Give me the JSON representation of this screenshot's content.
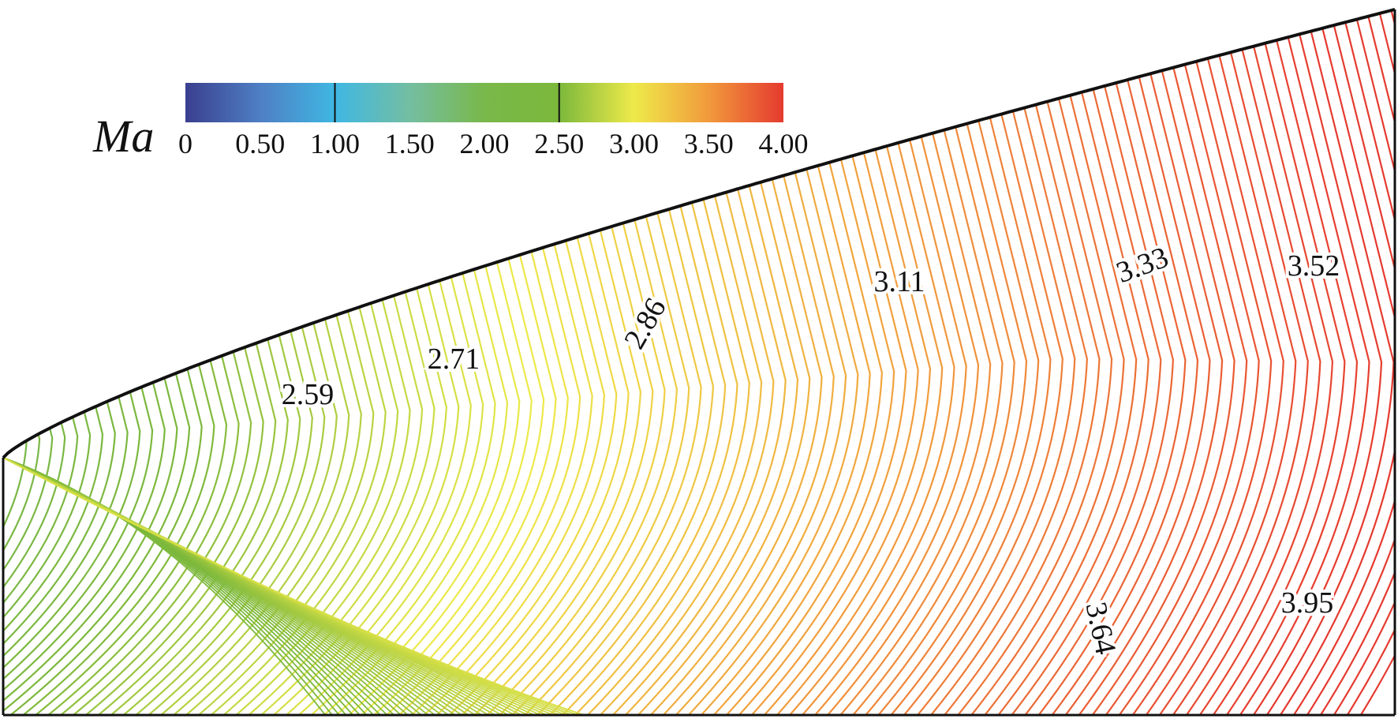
{
  "colorbar": {
    "variable": "Ma",
    "tick_labels": [
      "0",
      "0.50",
      "1.00",
      "1.50",
      "2.00",
      "2.50",
      "3.00",
      "3.50",
      "4.00"
    ],
    "range": [
      0,
      4.0
    ],
    "marker_values": [
      1.0,
      2.5
    ],
    "color_stops": [
      {
        "value": 0.0,
        "color": "#3a3f8f"
      },
      {
        "value": 0.5,
        "color": "#4f7fc4"
      },
      {
        "value": 1.0,
        "color": "#3fb7e3"
      },
      {
        "value": 1.5,
        "color": "#74bea2"
      },
      {
        "value": 2.0,
        "color": "#79b84a"
      },
      {
        "value": 2.5,
        "color": "#7cb83b"
      },
      {
        "value": 3.0,
        "color": "#eeea4a"
      },
      {
        "value": 3.5,
        "color": "#f19a3c"
      },
      {
        "value": 4.0,
        "color": "#e53a2f"
      }
    ]
  },
  "contour_labels": [
    {
      "text": "2.59",
      "value": 2.59
    },
    {
      "text": "2.71",
      "value": 2.71
    },
    {
      "text": "2.86",
      "value": 2.86
    },
    {
      "text": "3.11",
      "value": 3.11
    },
    {
      "text": "3.33",
      "value": 3.33
    },
    {
      "text": "3.52",
      "value": 3.52
    },
    {
      "text": "3.64",
      "value": 3.64
    },
    {
      "text": "3.95",
      "value": 3.95
    }
  ],
  "colors": {
    "wall": "#111111",
    "background": "#ffffff"
  }
}
